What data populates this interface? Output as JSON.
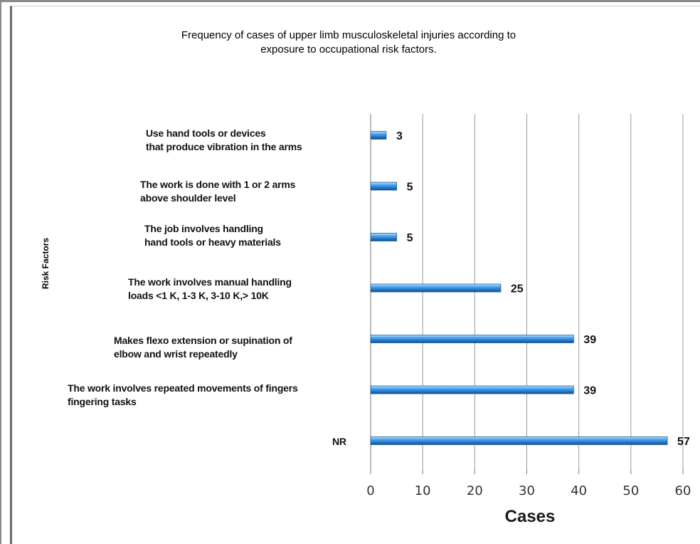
{
  "chart_data": {
    "type": "bar",
    "orientation": "horizontal",
    "title": "Frequency of cases of upper limb musculoskeletal injuries according to\nexposure to occupational risk factors.",
    "xlabel": "Cases",
    "ylabel": "Risk Factors",
    "xlim": [
      0,
      60
    ],
    "xticks": [
      0,
      10,
      20,
      30,
      40,
      50,
      60
    ],
    "grid": "vertical",
    "categories": [
      "Use hand tools or devices\n that produce vibration in the arms",
      "The work is done with 1 or 2 arms\nabove shoulder level",
      "The job involves handling\n hand tools or heavy materials",
      "The work involves manual handling\nloads <1 K, 1-3 K, 3-10 K,> 10K",
      "Makes flexo extension or supination of\nelbow and wrist repeatedly",
      "The work involves repeated movements of fingers\n fingering tasks",
      "NR"
    ],
    "values": [
      3,
      5,
      5,
      25,
      39,
      39,
      57
    ],
    "data_labels": [
      "3",
      "5",
      "5",
      "25",
      "39",
      "39",
      "57"
    ],
    "bar_color": "#2e86d8"
  }
}
